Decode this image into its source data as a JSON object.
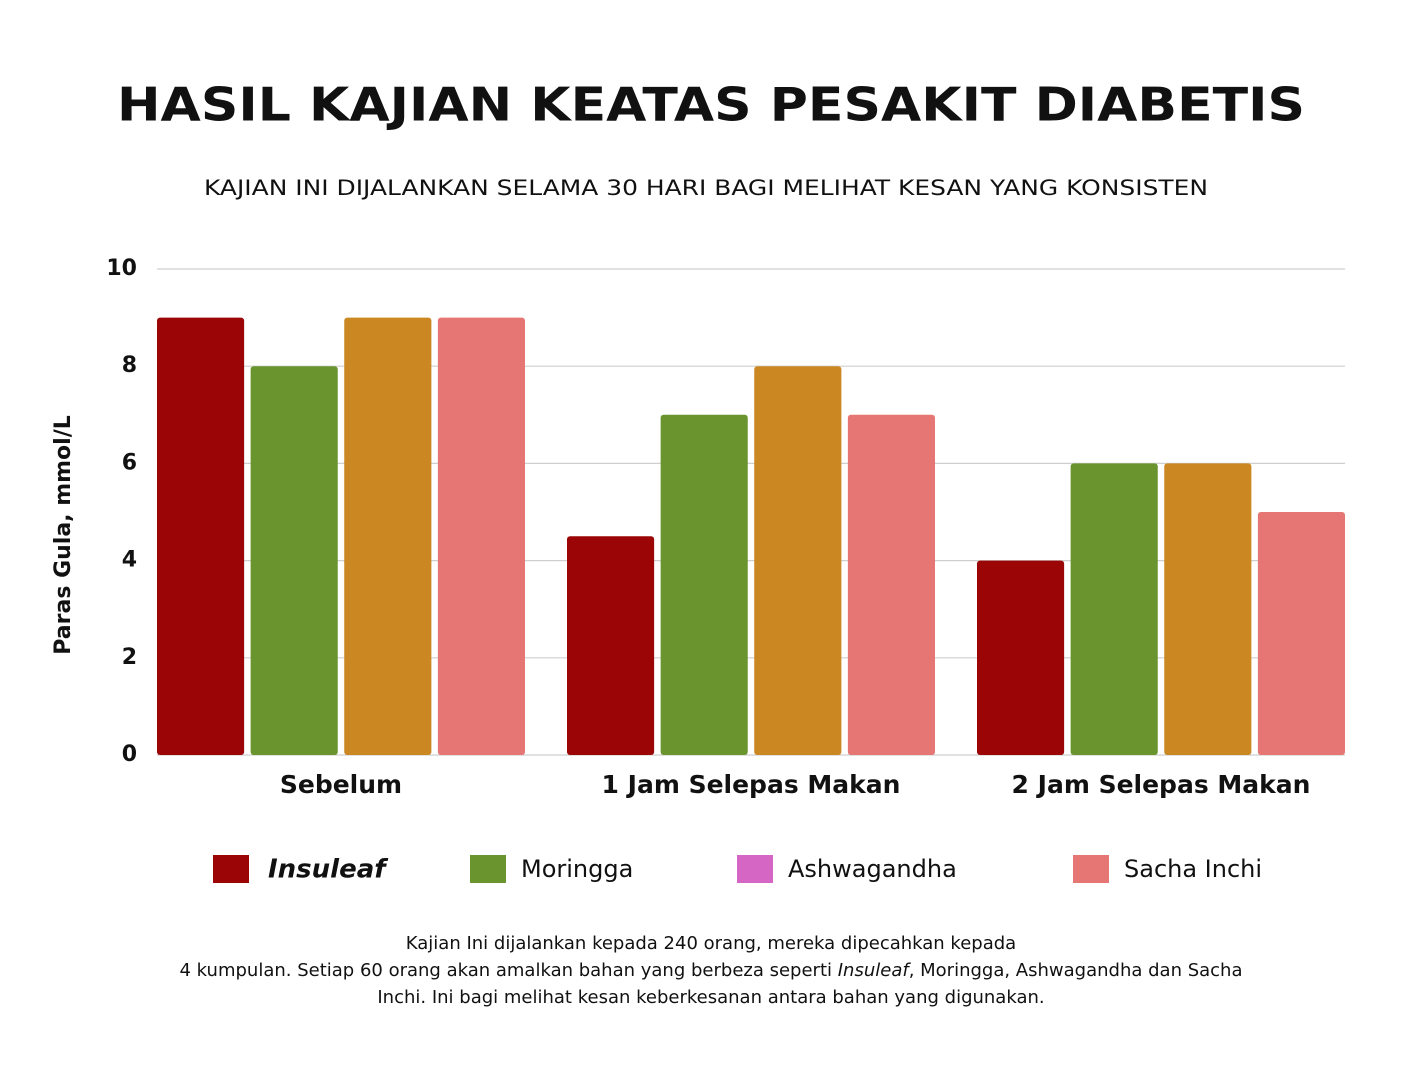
{
  "chart_data": {
    "type": "bar",
    "title": "HASIL KAJIAN KEATAS PESAKIT DIABETIS",
    "subtitle": "KAJIAN INI DIJALANKAN SELAMA 30 HARI BAGI MELIHAT KESAN YANG KONSISTEN",
    "y_label": "Paras Gula, mmol/L",
    "categories": [
      "Sebelum",
      "1 Jam Selepas Makan",
      "2 Jam Selepas Makan"
    ],
    "series": [
      {
        "name": "Insuleaf",
        "color": "#9b0506",
        "values": [
          9,
          4.5,
          4
        ]
      },
      {
        "name": "Moringga",
        "color": "#6a942d",
        "values": [
          8,
          7,
          6
        ]
      },
      {
        "name": "Ashwagandha",
        "color": "#cb8721",
        "legend_color": "#d566c4",
        "values": [
          9,
          8,
          6
        ]
      },
      {
        "name": "Sacha Inchi",
        "color": "#e57673",
        "values": [
          9,
          7,
          5
        ]
      }
    ],
    "ylim": [
      0,
      10
    ],
    "yticks": [
      0,
      2,
      4,
      6,
      8,
      10
    ],
    "grid": true,
    "legend": "bottom",
    "footnote": [
      [
        "Kajian Ini dijalankan kepada 240 orang, mereka dipecahkan kepada"
      ],
      [
        "4 kumpulan. Setiap 60 orang akan amalkan bahan yang berbeza seperti ",
        "Insuleaf",
        ", Moringga, Ashwagandha dan Sacha"
      ],
      [
        "Inchi. Ini bagi melihat kesan keberkesanan antara bahan yang digunakan."
      ]
    ]
  }
}
